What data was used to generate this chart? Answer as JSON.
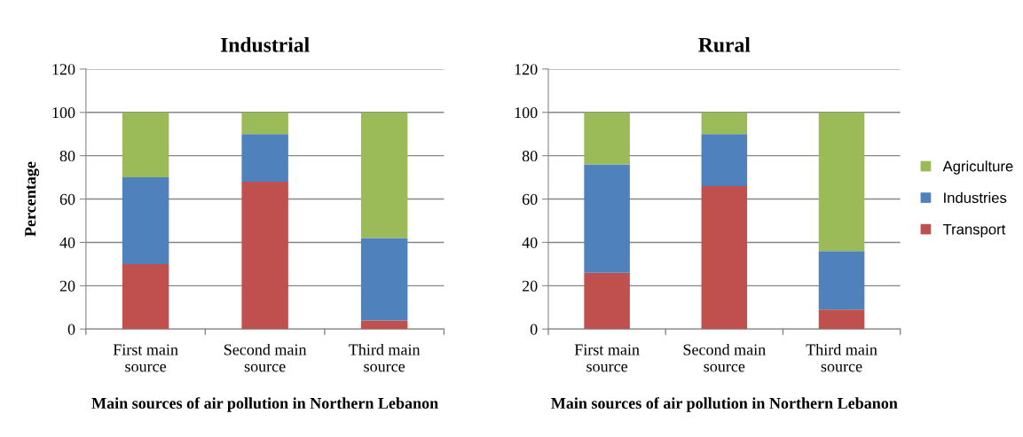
{
  "chart_data": [
    {
      "type": "bar",
      "title": "Industrial",
      "ylabel": "Percentage",
      "xlabel": "Main sources of air pollution in Northern Lebanon",
      "categories": [
        "First main\nsource",
        "Second main\nsource",
        "Third main\nsource"
      ],
      "stacked": true,
      "ylim": [
        0,
        120
      ],
      "yticks": [
        0,
        20,
        40,
        60,
        80,
        100,
        120
      ],
      "grid": "y",
      "series": [
        {
          "color": "#c0504d",
          "values": [
            30,
            68,
            4
          ]
        },
        {
          "color": "#4f81bd",
          "values": [
            40,
            22,
            38
          ]
        },
        {
          "color": "#9bbb59",
          "values": [
            30,
            10,
            58
          ]
        }
      ]
    },
    {
      "type": "bar",
      "title": "Rural",
      "xlabel": "Main sources of air pollution in Northern Lebanon",
      "categories": [
        "First main\nsource",
        "Second main\nsource",
        "Third main\nsource"
      ],
      "stacked": true,
      "ylim": [
        0,
        120
      ],
      "yticks": [
        0,
        20,
        40,
        60,
        80,
        100,
        120
      ],
      "grid": "y",
      "legend": "right",
      "series": [
        {
          "name": "Transport",
          "color": "#c0504d",
          "values": [
            26,
            66,
            9
          ]
        },
        {
          "name": "Industries",
          "color": "#4f81bd",
          "values": [
            50,
            24,
            27
          ]
        },
        {
          "name": "Agriculture",
          "color": "#9bbb59",
          "values": [
            24,
            10,
            64
          ]
        }
      ]
    }
  ]
}
